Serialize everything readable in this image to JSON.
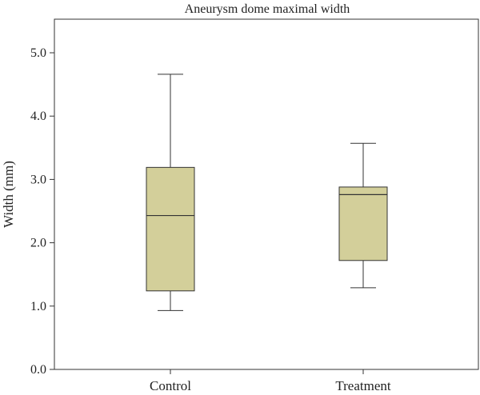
{
  "chart_data": {
    "type": "boxplot",
    "title": "Aneurysm dome maximal width",
    "xlabel": "",
    "ylabel": "Width (mm)",
    "ylim": [
      0,
      5.5
    ],
    "yticks": [
      0.0,
      1.0,
      2.0,
      3.0,
      4.0,
      5.0
    ],
    "ytick_labels": [
      "0.0",
      "1.0",
      "2.0",
      "3.0",
      "4.0",
      "5.0"
    ],
    "categories": [
      "Control",
      "Treatment"
    ],
    "boxes": [
      {
        "category": "Control",
        "min": 0.93,
        "q1": 1.24,
        "median": 2.43,
        "q3": 3.19,
        "max": 4.66
      },
      {
        "category": "Treatment",
        "min": 1.29,
        "q1": 1.72,
        "median": 2.76,
        "q3": 2.88,
        "max": 3.57
      }
    ],
    "box_fill": "#d3cf9a",
    "stroke_color": "#333333",
    "grid": false,
    "legend": "none"
  }
}
